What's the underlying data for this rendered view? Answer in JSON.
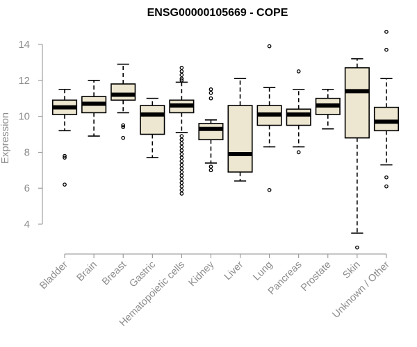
{
  "chart_data": {
    "type": "box",
    "title": "ENSG00000105669 - COPE",
    "xlabel": "",
    "ylabel": "Expression",
    "ylim": [
      3.0,
      15.0
    ],
    "yticks": [
      4,
      6,
      8,
      10,
      12,
      14
    ],
    "grid": false,
    "legend": "none",
    "box_fill": "#ede6d0",
    "box_stroke": "#000000",
    "median_color": "#000000",
    "axis_color": "#8c8c8c",
    "categories": [
      "Bladder",
      "Brain",
      "Breast",
      "Gastric",
      "Hematopoietic cells",
      "Kidney",
      "Liver",
      "Lung",
      "Pancreas",
      "Prostate",
      "Skin",
      "Unknown / Other"
    ],
    "boxes": [
      {
        "q1": 10.1,
        "median": 10.5,
        "q3": 10.9,
        "whisker_low": 9.2,
        "whisker_high": 11.5,
        "outliers": [
          7.8,
          7.7,
          6.2
        ]
      },
      {
        "q1": 10.2,
        "median": 10.7,
        "q3": 11.1,
        "whisker_low": 8.9,
        "whisker_high": 12.0,
        "outliers": []
      },
      {
        "q1": 10.9,
        "median": 11.2,
        "q3": 11.8,
        "whisker_low": 10.2,
        "whisker_high": 12.9,
        "outliers": [
          9.5,
          9.4,
          8.8
        ]
      },
      {
        "q1": 9.0,
        "median": 10.1,
        "q3": 10.6,
        "whisker_low": 7.7,
        "whisker_high": 11.0,
        "outliers": []
      },
      {
        "q1": 10.2,
        "median": 10.6,
        "q3": 10.9,
        "whisker_low": 9.1,
        "whisker_high": 11.9,
        "outliers": [
          12.7,
          12.5,
          12.3,
          12.1,
          12.0,
          8.9,
          8.7,
          8.5,
          8.3,
          8.1,
          7.9,
          7.7,
          7.5,
          7.3,
          7.1,
          6.9,
          6.7,
          6.5,
          6.3,
          6.1,
          5.9,
          5.7
        ]
      },
      {
        "q1": 8.7,
        "median": 9.3,
        "q3": 9.6,
        "whisker_low": 7.4,
        "whisker_high": 9.8,
        "outliers": [
          11.5,
          11.3,
          11.0,
          7.2,
          7.0
        ]
      },
      {
        "q1": 6.9,
        "median": 7.9,
        "q3": 10.6,
        "whisker_low": 6.4,
        "whisker_high": 12.1,
        "outliers": []
      },
      {
        "q1": 9.5,
        "median": 10.1,
        "q3": 10.6,
        "whisker_low": 8.3,
        "whisker_high": 11.6,
        "outliers": [
          13.9,
          5.9
        ]
      },
      {
        "q1": 9.5,
        "median": 10.1,
        "q3": 10.4,
        "whisker_low": 8.3,
        "whisker_high": 11.5,
        "outliers": [
          12.5,
          8.0
        ]
      },
      {
        "q1": 10.1,
        "median": 10.6,
        "q3": 11.0,
        "whisker_low": 9.3,
        "whisker_high": 11.5,
        "outliers": []
      },
      {
        "q1": 8.8,
        "median": 11.4,
        "q3": 12.7,
        "whisker_low": 3.5,
        "whisker_high": 13.2,
        "outliers": [
          2.7
        ]
      },
      {
        "q1": 9.2,
        "median": 9.7,
        "q3": 10.5,
        "whisker_low": 7.3,
        "whisker_high": 12.1,
        "outliers": [
          14.7,
          13.7,
          6.6,
          6.1
        ]
      }
    ]
  }
}
